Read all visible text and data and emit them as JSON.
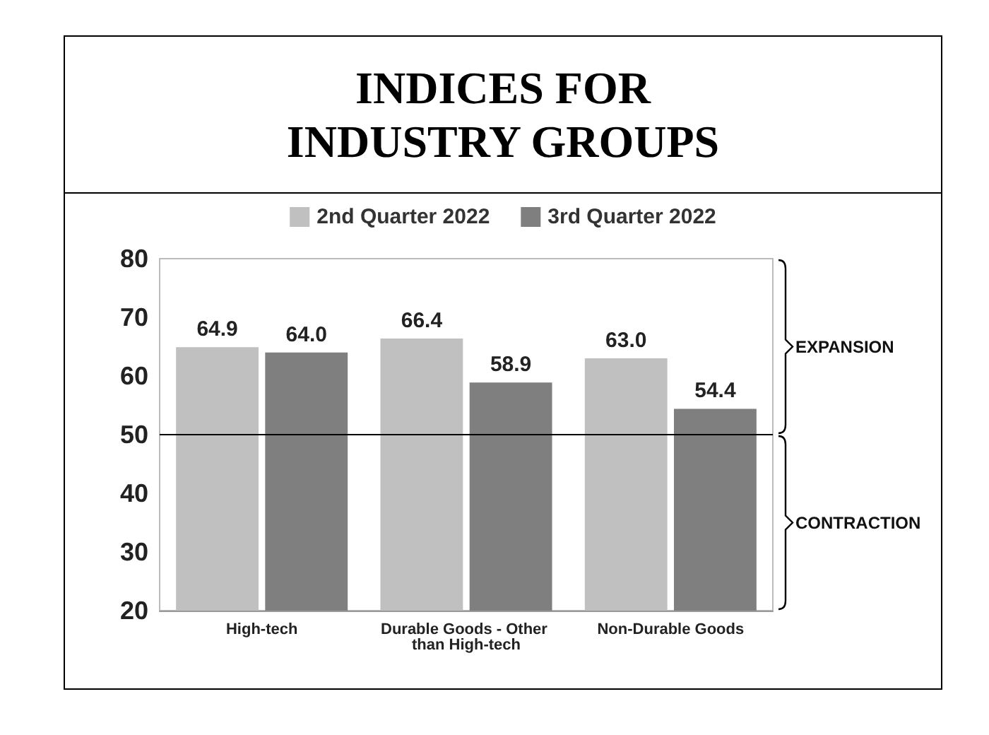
{
  "chart_data": {
    "type": "bar",
    "title": "INDICES FOR\nINDUSTRY GROUPS",
    "categories": [
      "High-tech",
      "Durable Goods - Other than High-tech",
      "Non-Durable Goods"
    ],
    "series": [
      {
        "name": "2nd Quarter 2022",
        "color": "#c0c0c0",
        "values": [
          64.9,
          66.4,
          63.0
        ],
        "value_labels": [
          "64.9",
          "66.4",
          "63.0"
        ]
      },
      {
        "name": "3rd Quarter 2022",
        "color": "#7f7f7f",
        "values": [
          64.0,
          58.9,
          54.4
        ],
        "value_labels": [
          "64.0",
          "58.9",
          "54.4"
        ]
      }
    ],
    "ylim": [
      20,
      80
    ],
    "yticks": [
      20,
      30,
      40,
      50,
      60,
      70,
      80
    ],
    "grid": false,
    "legend": "top",
    "ref_lines": [
      {
        "axis": "y",
        "value": 50,
        "color": "#000000"
      }
    ],
    "annotations": [
      "EXPANSION",
      "CONTRACTION"
    ]
  }
}
